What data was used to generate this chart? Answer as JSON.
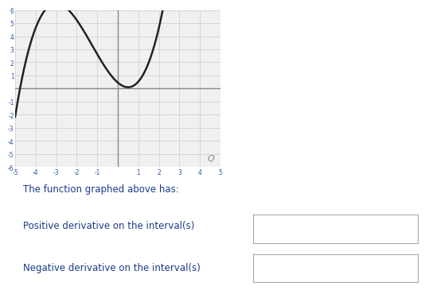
{
  "xlim": [
    -5,
    5
  ],
  "ylim": [
    -6,
    6
  ],
  "xticks": [
    -5,
    -4,
    -3,
    -2,
    -1,
    0,
    1,
    2,
    3,
    4,
    5
  ],
  "yticks": [
    -6,
    -5,
    -4,
    -3,
    -2,
    -1,
    0,
    1,
    2,
    3,
    4,
    5,
    6
  ],
  "curve_color": "#222222",
  "grid_color": "#cccccc",
  "axis_color": "#888888",
  "tick_label_color": "#3355aa",
  "text_line1": "The function graphed above has:",
  "text_line2": "Positive derivative on the interval(s)",
  "text_line3": "Negative derivative on the interval(s)",
  "text_color": "#1a3a8a",
  "bg_color": "#ffffff",
  "graph_bg": "#f0f0f0",
  "curve_lw": 1.8
}
